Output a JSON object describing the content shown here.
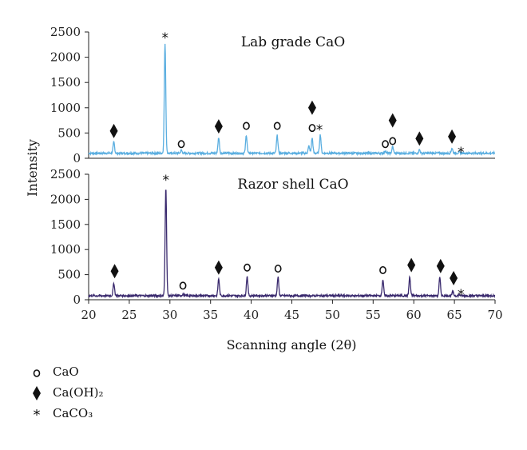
{
  "chart_data": {
    "type": "line",
    "xlabel": "Scanning angle (2θ)",
    "ylabel": "Intensity",
    "xlim": [
      20,
      70
    ],
    "x_ticks": [
      20,
      25,
      30,
      35,
      40,
      45,
      50,
      55,
      60,
      65,
      70
    ],
    "ylim": [
      0,
      2500
    ],
    "y_ticks": [
      0,
      500,
      1000,
      1500,
      2000,
      2500
    ],
    "grid": false,
    "legend_placement": "bottom-left",
    "panels": [
      {
        "title": "Lab grade CaO",
        "color": "#5aaee0",
        "baseline": 100,
        "peaks": [
          {
            "x": 23.1,
            "y": 320
          },
          {
            "x": 29.4,
            "y": 2280
          },
          {
            "x": 31.4,
            "y": 160
          },
          {
            "x": 36.0,
            "y": 410
          },
          {
            "x": 39.4,
            "y": 460
          },
          {
            "x": 43.2,
            "y": 450
          },
          {
            "x": 47.1,
            "y": 240
          },
          {
            "x": 47.5,
            "y": 400
          },
          {
            "x": 48.5,
            "y": 470
          },
          {
            "x": 56.5,
            "y": 150
          },
          {
            "x": 57.4,
            "y": 230
          },
          {
            "x": 60.7,
            "y": 170
          },
          {
            "x": 64.7,
            "y": 200
          },
          {
            "x": 65.6,
            "y": 120
          }
        ],
        "markers": [
          {
            "x": 23.1,
            "y": 540,
            "symbol": "diamond"
          },
          {
            "x": 29.4,
            "y": 2420,
            "symbol": "star"
          },
          {
            "x": 31.4,
            "y": 280,
            "symbol": "circle"
          },
          {
            "x": 36.0,
            "y": 630,
            "symbol": "diamond"
          },
          {
            "x": 39.4,
            "y": 640,
            "symbol": "circle"
          },
          {
            "x": 43.2,
            "y": 640,
            "symbol": "circle"
          },
          {
            "x": 47.5,
            "y": 1000,
            "symbol": "diamond"
          },
          {
            "x": 47.5,
            "y": 600,
            "symbol": "circle"
          },
          {
            "x": 48.4,
            "y": 600,
            "symbol": "star"
          },
          {
            "x": 56.5,
            "y": 280,
            "symbol": "circle"
          },
          {
            "x": 57.4,
            "y": 340,
            "symbol": "circle"
          },
          {
            "x": 57.4,
            "y": 750,
            "symbol": "diamond"
          },
          {
            "x": 60.7,
            "y": 390,
            "symbol": "diamond"
          },
          {
            "x": 64.7,
            "y": 430,
            "symbol": "diamond"
          },
          {
            "x": 65.8,
            "y": 160,
            "symbol": "star"
          }
        ]
      },
      {
        "title": "Razor shell CaO",
        "color": "#3a2a6e",
        "baseline": 80,
        "peaks": [
          {
            "x": 23.1,
            "y": 330
          },
          {
            "x": 29.5,
            "y": 2250
          },
          {
            "x": 31.6,
            "y": 110
          },
          {
            "x": 36.0,
            "y": 420
          },
          {
            "x": 39.5,
            "y": 470
          },
          {
            "x": 43.3,
            "y": 450
          },
          {
            "x": 56.2,
            "y": 400
          },
          {
            "x": 59.5,
            "y": 450
          },
          {
            "x": 63.2,
            "y": 440
          },
          {
            "x": 64.8,
            "y": 160
          },
          {
            "x": 65.6,
            "y": 100
          }
        ],
        "markers": [
          {
            "x": 23.2,
            "y": 570,
            "symbol": "diamond"
          },
          {
            "x": 29.5,
            "y": 2420,
            "symbol": "star"
          },
          {
            "x": 31.6,
            "y": 280,
            "symbol": "circle"
          },
          {
            "x": 36.0,
            "y": 640,
            "symbol": "diamond"
          },
          {
            "x": 39.5,
            "y": 640,
            "symbol": "circle"
          },
          {
            "x": 43.3,
            "y": 620,
            "symbol": "circle"
          },
          {
            "x": 56.2,
            "y": 590,
            "symbol": "circle"
          },
          {
            "x": 59.7,
            "y": 690,
            "symbol": "diamond"
          },
          {
            "x": 63.3,
            "y": 670,
            "symbol": "diamond"
          },
          {
            "x": 64.9,
            "y": 430,
            "symbol": "diamond"
          },
          {
            "x": 65.8,
            "y": 140,
            "symbol": "star"
          }
        ]
      }
    ],
    "legend": [
      {
        "symbol": "circle",
        "label": "CaO"
      },
      {
        "symbol": "diamond",
        "label": "Ca(OH)₂"
      },
      {
        "symbol": "star",
        "label": "CaCO₃"
      }
    ]
  }
}
